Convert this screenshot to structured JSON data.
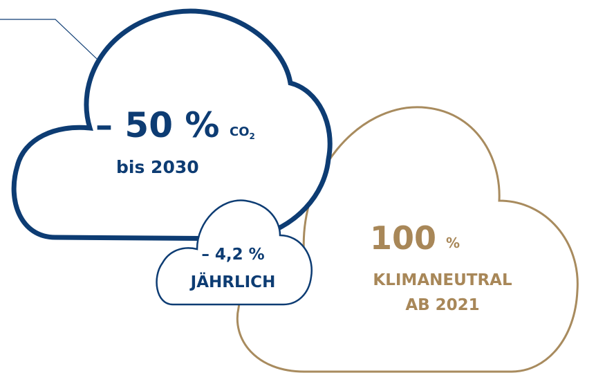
{
  "blue_cloud": {
    "value": "– 50 %",
    "unit": "CO",
    "unit_subscript": "2",
    "caption": "bis 2030"
  },
  "small_cloud": {
    "value": "– 4,2 %",
    "caption": "JÄHRLICH"
  },
  "gold_cloud": {
    "value": "100",
    "unit": "%",
    "caption_lines": [
      "KLIMANEUTRAL",
      "AB 2021"
    ]
  }
}
